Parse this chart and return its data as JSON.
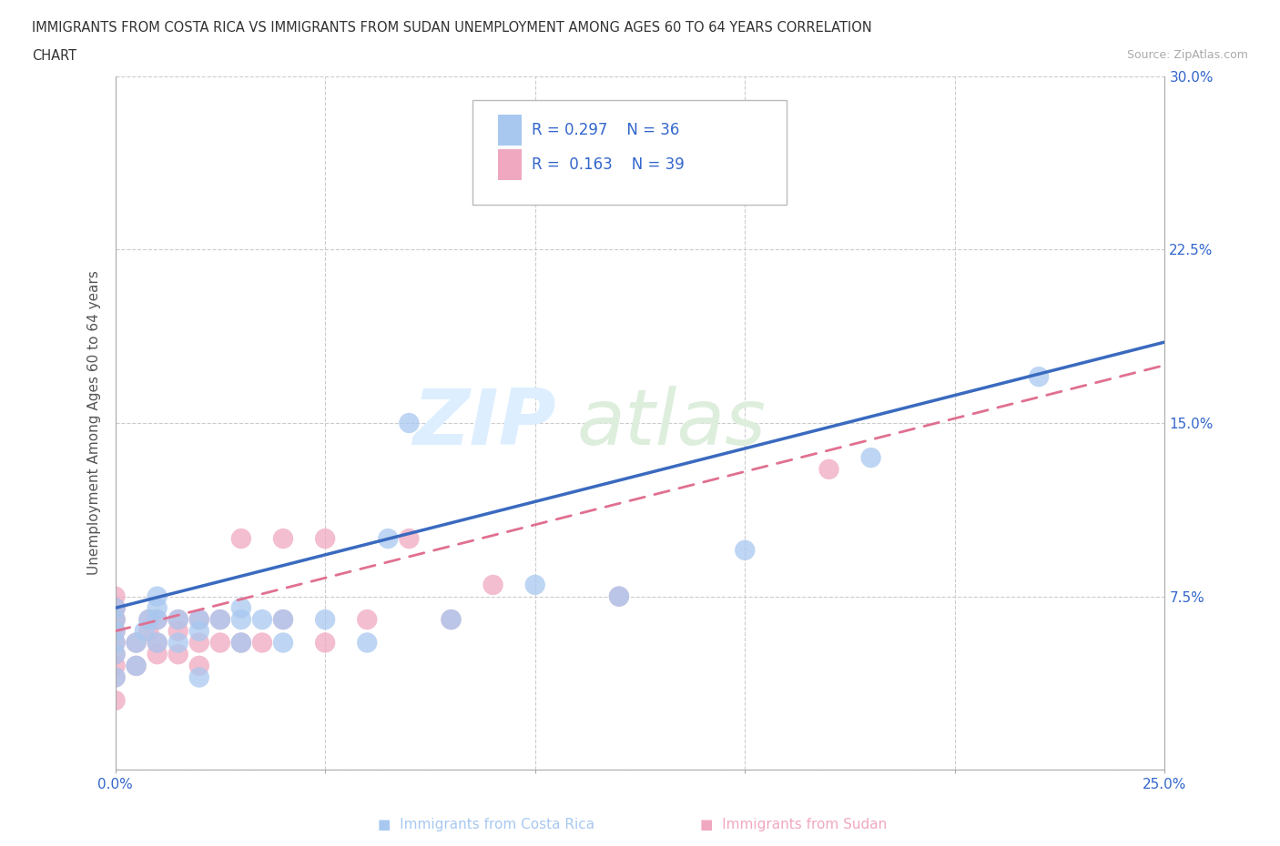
{
  "title_line1": "IMMIGRANTS FROM COSTA RICA VS IMMIGRANTS FROM SUDAN UNEMPLOYMENT AMONG AGES 60 TO 64 YEARS CORRELATION",
  "title_line2": "CHART",
  "source": "Source: ZipAtlas.com",
  "ylabel": "Unemployment Among Ages 60 to 64 years",
  "xlim": [
    0.0,
    0.25
  ],
  "ylim": [
    0.0,
    0.3
  ],
  "xticks": [
    0.0,
    0.05,
    0.1,
    0.15,
    0.2,
    0.25
  ],
  "yticks": [
    0.0,
    0.075,
    0.15,
    0.225,
    0.3
  ],
  "xtick_labels": [
    "0.0%",
    "",
    "",
    "",
    "",
    "25.0%"
  ],
  "ytick_labels_left": [
    "",
    "",
    "",
    "",
    ""
  ],
  "ytick_labels_right": [
    "",
    "7.5%",
    "15.0%",
    "22.5%",
    "30.0%"
  ],
  "grid_color": "#cccccc",
  "background_color": "#ffffff",
  "costa_rica_color": "#a8c8f0",
  "sudan_color": "#f0a8c0",
  "costa_rica_line_color": "#3a6abf",
  "sudan_line_color": "#e07090",
  "costa_rica_R": 0.297,
  "costa_rica_N": 36,
  "sudan_R": 0.163,
  "sudan_N": 39,
  "legend_text_color": "#3366cc",
  "costa_rica_x": [
    0.0,
    0.0,
    0.0,
    0.0,
    0.0,
    0.0,
    0.005,
    0.005,
    0.007,
    0.008,
    0.01,
    0.01,
    0.01,
    0.01,
    0.015,
    0.015,
    0.02,
    0.02,
    0.02,
    0.025,
    0.03,
    0.03,
    0.03,
    0.035,
    0.04,
    0.04,
    0.05,
    0.06,
    0.065,
    0.07,
    0.08,
    0.1,
    0.12,
    0.15,
    0.18,
    0.22
  ],
  "costa_rica_y": [
    0.04,
    0.05,
    0.055,
    0.06,
    0.065,
    0.07,
    0.045,
    0.055,
    0.06,
    0.065,
    0.055,
    0.065,
    0.07,
    0.075,
    0.055,
    0.065,
    0.04,
    0.06,
    0.065,
    0.065,
    0.055,
    0.065,
    0.07,
    0.065,
    0.055,
    0.065,
    0.065,
    0.055,
    0.1,
    0.15,
    0.065,
    0.08,
    0.075,
    0.095,
    0.135,
    0.17
  ],
  "sudan_x": [
    0.0,
    0.0,
    0.0,
    0.0,
    0.0,
    0.0,
    0.0,
    0.0,
    0.0,
    0.0,
    0.0,
    0.005,
    0.005,
    0.008,
    0.008,
    0.01,
    0.01,
    0.01,
    0.015,
    0.015,
    0.015,
    0.02,
    0.02,
    0.02,
    0.025,
    0.025,
    0.03,
    0.03,
    0.035,
    0.04,
    0.04,
    0.05,
    0.05,
    0.06,
    0.07,
    0.08,
    0.09,
    0.12,
    0.17
  ],
  "sudan_y": [
    0.03,
    0.04,
    0.045,
    0.05,
    0.055,
    0.06,
    0.065,
    0.065,
    0.07,
    0.07,
    0.075,
    0.045,
    0.055,
    0.06,
    0.065,
    0.05,
    0.055,
    0.065,
    0.05,
    0.06,
    0.065,
    0.045,
    0.055,
    0.065,
    0.055,
    0.065,
    0.055,
    0.1,
    0.055,
    0.065,
    0.1,
    0.055,
    0.1,
    0.065,
    0.1,
    0.065,
    0.08,
    0.075,
    0.13
  ],
  "cr_line_x0": 0.0,
  "cr_line_y0": 0.07,
  "cr_line_x1": 0.25,
  "cr_line_y1": 0.185,
  "sd_line_x0": 0.0,
  "sd_line_y0": 0.06,
  "sd_line_x1": 0.25,
  "sd_line_y1": 0.175,
  "watermark_zip_color": "#ddeeff",
  "watermark_atlas_color": "#ddeedd",
  "bottom_legend_cr_label": "Immigrants from Costa Rica",
  "bottom_legend_sd_label": "Immigrants from Sudan"
}
